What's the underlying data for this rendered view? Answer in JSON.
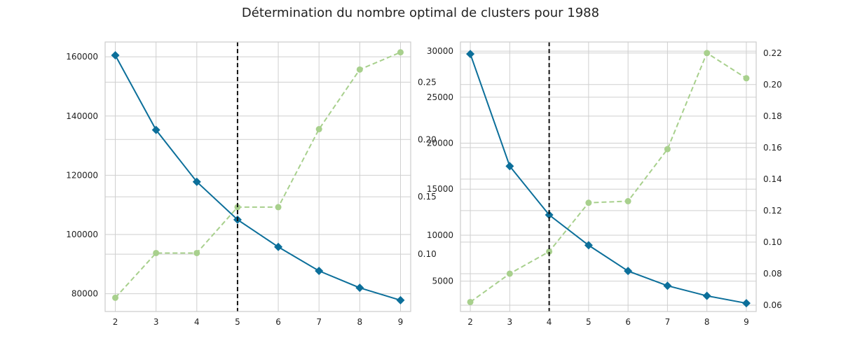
{
  "title": "Détermination du nombre optimal de clusters pour 1988",
  "colors": {
    "distortion": "#0c6f9a",
    "fit_time": "#a8d08d",
    "elbow": "#111111",
    "grid": "#cfcfcf",
    "spine": "#cccccc"
  },
  "chart_data": [
    {
      "type": "line",
      "x": [
        2,
        3,
        4,
        5,
        6,
        7,
        8,
        9
      ],
      "xlim": [
        1.75,
        9.25
      ],
      "grid": true,
      "left_axis": {
        "ylim": [
          74000,
          165000
        ],
        "ticks": [
          80000,
          100000,
          120000,
          140000,
          160000
        ],
        "tick_labels": [
          "80000",
          "100000",
          "120000",
          "140000",
          "160000"
        ]
      },
      "right_axis": {
        "ylim": [
          0.05,
          0.285
        ],
        "ticks": [
          0.1,
          0.15,
          0.2,
          0.25
        ],
        "tick_labels": [
          "0.10",
          "0.15",
          "0.20",
          "0.25"
        ]
      },
      "series": [
        {
          "axis": "left",
          "marker": "diamond",
          "style": "solid",
          "values": [
            160500,
            135300,
            117800,
            105000,
            95800,
            87700,
            82000,
            77800
          ]
        },
        {
          "axis": "right",
          "marker": "circle",
          "style": "dashed",
          "values": [
            0.062,
            0.101,
            0.101,
            0.141,
            0.141,
            0.209,
            0.261,
            0.276
          ]
        }
      ],
      "elbow_x": 5
    },
    {
      "type": "line",
      "x": [
        2,
        3,
        4,
        5,
        6,
        7,
        8,
        9
      ],
      "xlim": [
        1.75,
        9.25
      ],
      "grid": true,
      "left_axis": {
        "ylim": [
          1700,
          31000
        ],
        "ticks": [
          5000,
          10000,
          15000,
          20000,
          25000,
          30000
        ],
        "tick_labels": [
          "5000",
          "10000",
          "15000",
          "20000",
          "25000",
          "30000"
        ]
      },
      "right_axis": {
        "ylim": [
          0.056,
          0.227
        ],
        "ticks": [
          0.06,
          0.08,
          0.1,
          0.12,
          0.14,
          0.16,
          0.18,
          0.2,
          0.22
        ],
        "tick_labels": [
          "0.06",
          "0.08",
          "0.10",
          "0.12",
          "0.14",
          "0.16",
          "0.18",
          "0.20",
          "0.22"
        ]
      },
      "series": [
        {
          "axis": "left",
          "marker": "diamond",
          "style": "solid",
          "values": [
            29700,
            17500,
            12200,
            8900,
            6100,
            4500,
            3400,
            2600
          ]
        },
        {
          "axis": "right",
          "marker": "circle",
          "style": "dashed",
          "values": [
            0.062,
            0.08,
            0.094,
            0.125,
            0.126,
            0.159,
            0.22,
            0.204
          ]
        }
      ],
      "elbow_x": 4
    }
  ]
}
